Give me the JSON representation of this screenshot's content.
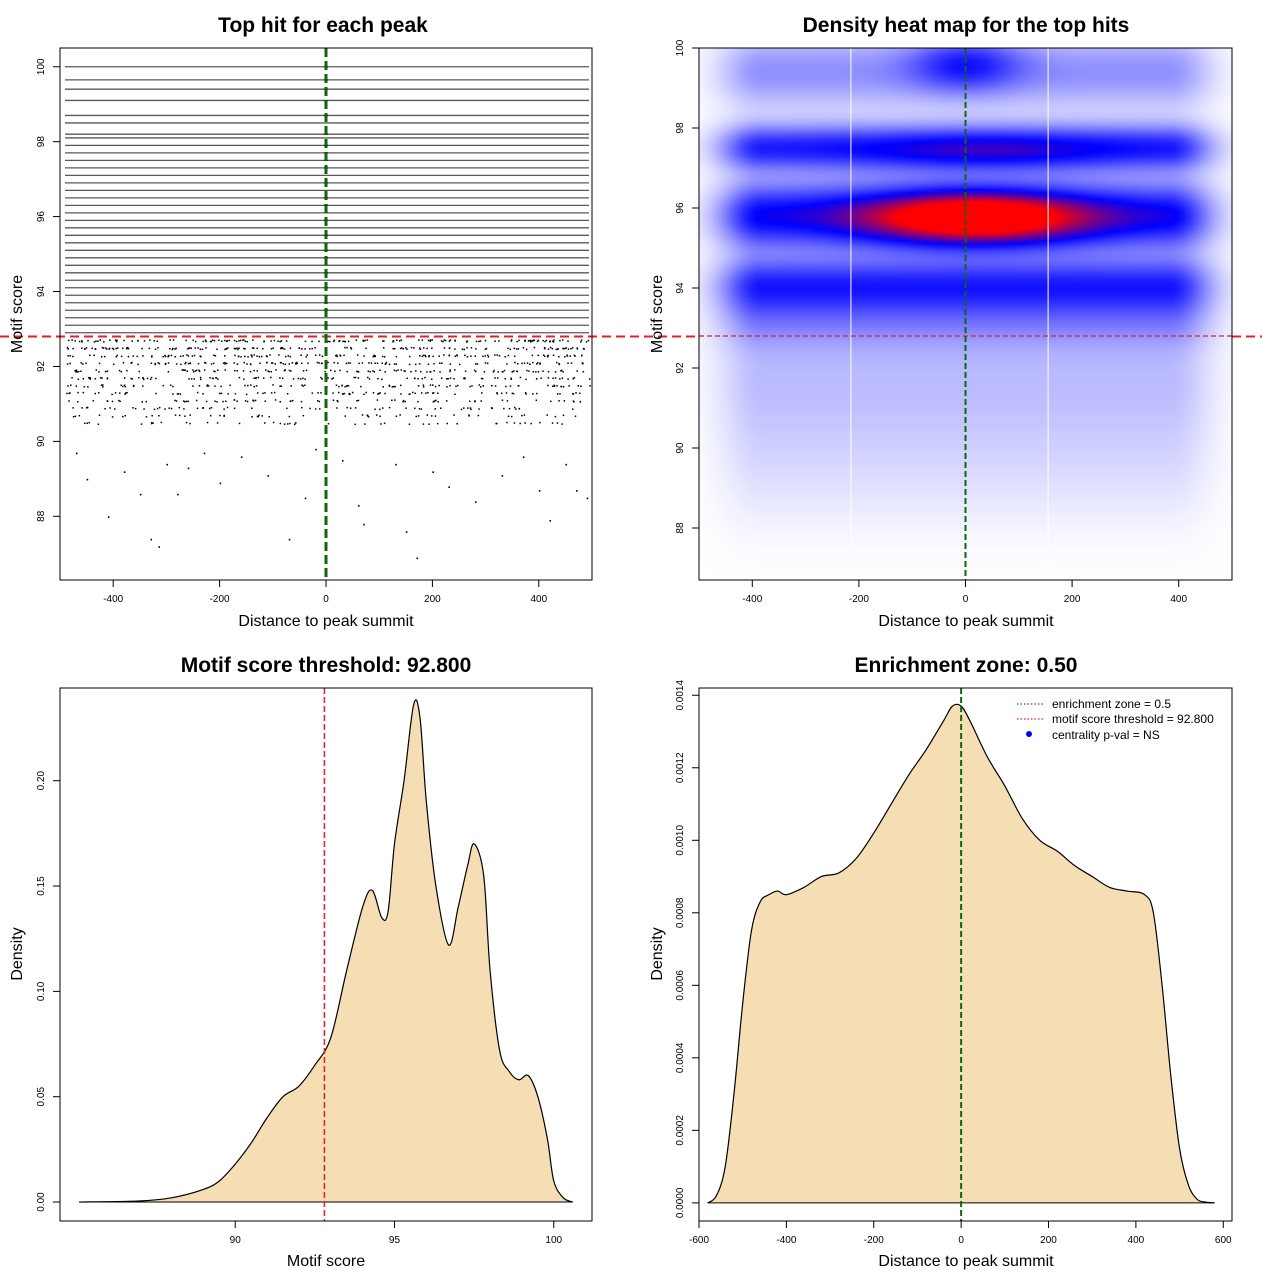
{
  "chart_data": [
    {
      "type": "scatter",
      "title": "Top hit for each peak",
      "xlabel": "Distance to peak summit",
      "ylabel": "Motif score",
      "xlim": [
        -500,
        500
      ],
      "ylim": [
        86.3,
        100.5
      ],
      "xticks": [
        -400,
        -200,
        0,
        200,
        400
      ],
      "yticks": [
        88,
        90,
        92,
        94,
        96,
        98,
        100
      ],
      "vline": 0,
      "hline": 92.8,
      "dense_levels": [
        100.0,
        99.65,
        99.4,
        99.1,
        98.7,
        98.5,
        98.2,
        98.1,
        97.9,
        97.7,
        97.5,
        97.3,
        97.1,
        96.9,
        96.7,
        96.5,
        96.3,
        96.1,
        95.9,
        95.7,
        95.5,
        95.3,
        95.1,
        94.9,
        94.7,
        94.5,
        94.3,
        94.1,
        93.9,
        93.7,
        93.5,
        93.3,
        93.1,
        92.9
      ],
      "sparse_points": [
        [
          -470,
          89.7
        ],
        [
          -450,
          89.0
        ],
        [
          -410,
          88.0
        ],
        [
          -380,
          89.2
        ],
        [
          -350,
          88.6
        ],
        [
          -330,
          87.4
        ],
        [
          -315,
          87.2
        ],
        [
          -300,
          89.4
        ],
        [
          -280,
          88.6
        ],
        [
          -260,
          89.3
        ],
        [
          -230,
          89.7
        ],
        [
          -200,
          88.9
        ],
        [
          -160,
          89.6
        ],
        [
          -110,
          89.1
        ],
        [
          -70,
          87.4
        ],
        [
          -40,
          88.5
        ],
        [
          -20,
          89.8
        ],
        [
          30,
          89.5
        ],
        [
          60,
          88.3
        ],
        [
          70,
          87.8
        ],
        [
          130,
          89.4
        ],
        [
          150,
          87.6
        ],
        [
          170,
          86.9
        ],
        [
          200,
          89.2
        ],
        [
          230,
          88.8
        ],
        [
          280,
          88.4
        ],
        [
          330,
          89.1
        ],
        [
          370,
          89.6
        ],
        [
          400,
          88.7
        ],
        [
          420,
          87.9
        ],
        [
          450,
          89.4
        ],
        [
          470,
          88.7
        ],
        [
          490,
          88.5
        ]
      ]
    },
    {
      "type": "heatmap",
      "title": "Density heat map for the top hits",
      "xlabel": "Distance to peak summit",
      "ylabel": "Motif score",
      "xlim": [
        -500,
        500
      ],
      "ylim": [
        86.7,
        100.0
      ],
      "xticks": [
        -400,
        -200,
        0,
        200,
        400
      ],
      "yticks": [
        88,
        90,
        92,
        94,
        96,
        98,
        100
      ],
      "vline": 0,
      "hline": 92.8,
      "white_vlines": [
        -215,
        155
      ],
      "bands": [
        {
          "y": 95.8,
          "sy": 0.55,
          "amp": 1.0
        },
        {
          "y": 97.5,
          "sy": 0.38,
          "amp": 0.85
        },
        {
          "y": 94.1,
          "sy": 0.45,
          "amp": 0.75
        },
        {
          "y": 93.3,
          "sy": 0.55,
          "amp": 0.35
        },
        {
          "y": 99.4,
          "sy": 0.6,
          "amp": 0.35
        },
        {
          "y": 91.7,
          "sy": 1.1,
          "amp": 0.18
        },
        {
          "y": 89.6,
          "sy": 1.0,
          "amp": 0.07
        }
      ],
      "hotspots": [
        {
          "x": 20,
          "y": 95.75,
          "sx": 140,
          "sy": 0.45,
          "amp": 1.6
        },
        {
          "x": 40,
          "y": 97.4,
          "sx": 160,
          "sy": 0.35,
          "amp": 0.35
        },
        {
          "x": 0,
          "y": 99.6,
          "sx": 70,
          "sy": 0.45,
          "amp": 0.6
        }
      ]
    },
    {
      "type": "area",
      "title": "Motif score threshold: 92.800",
      "xlabel": "Motif score",
      "ylabel": "Density",
      "xlim": [
        84.5,
        101.2
      ],
      "ylim": [
        -0.009,
        0.244
      ],
      "xticks": [
        90,
        95,
        100
      ],
      "yticks": [
        0.0,
        0.05,
        0.1,
        0.15,
        0.2
      ],
      "ytick_labels": [
        "0.00",
        "0.05",
        "0.10",
        "0.15",
        "0.20"
      ],
      "threshold": 92.8,
      "x": [
        85.1,
        87.0,
        88.0,
        89.0,
        89.5,
        90.0,
        90.5,
        91.0,
        91.5,
        92.0,
        92.5,
        93.0,
        93.5,
        94.0,
        94.3,
        94.6,
        94.8,
        95.0,
        95.3,
        95.6,
        95.8,
        96.0,
        96.3,
        96.7,
        97.0,
        97.3,
        97.5,
        97.8,
        98.0,
        98.3,
        98.6,
        98.9,
        99.2,
        99.5,
        99.8,
        100.0,
        100.3,
        100.6
      ],
      "y": [
        0.0,
        0.0005,
        0.002,
        0.006,
        0.01,
        0.018,
        0.028,
        0.04,
        0.05,
        0.055,
        0.065,
        0.078,
        0.11,
        0.14,
        0.148,
        0.135,
        0.138,
        0.17,
        0.2,
        0.236,
        0.23,
        0.19,
        0.15,
        0.122,
        0.14,
        0.16,
        0.17,
        0.155,
        0.11,
        0.072,
        0.062,
        0.058,
        0.06,
        0.05,
        0.03,
        0.01,
        0.002,
        0.0
      ]
    },
    {
      "type": "area",
      "title": "Enrichment zone: 0.50",
      "xlabel": "Distance to peak summit",
      "ylabel": "Density",
      "xlim": [
        -600,
        620
      ],
      "ylim": [
        -5e-05,
        0.00142
      ],
      "xticks": [
        -600,
        -400,
        -200,
        0,
        200,
        400,
        600
      ],
      "yticks": [
        0.0,
        0.0002,
        0.0004,
        0.0006,
        0.0008,
        0.001,
        0.0012,
        0.0014
      ],
      "ytick_labels": [
        "0.0000",
        "0.0002",
        "0.0004",
        "0.0006",
        "0.0008",
        "0.0010",
        "0.0012",
        "0.0014"
      ],
      "vline": 0,
      "x": [
        -580,
        -560,
        -540,
        -520,
        -500,
        -480,
        -460,
        -440,
        -420,
        -400,
        -360,
        -320,
        -280,
        -240,
        -200,
        -160,
        -120,
        -80,
        -40,
        -20,
        0,
        20,
        60,
        100,
        140,
        180,
        220,
        260,
        300,
        340,
        380,
        420,
        440,
        460,
        480,
        500,
        520,
        540,
        560,
        580
      ],
      "y": [
        0.0,
        2e-05,
        0.0001,
        0.0003,
        0.00055,
        0.00075,
        0.00083,
        0.00085,
        0.00086,
        0.00085,
        0.00087,
        0.0009,
        0.00091,
        0.00095,
        0.00102,
        0.0011,
        0.00118,
        0.00125,
        0.00133,
        0.00137,
        0.00137,
        0.00133,
        0.00123,
        0.00115,
        0.00106,
        0.001,
        0.00097,
        0.00093,
        0.0009,
        0.00087,
        0.00086,
        0.00085,
        0.0008,
        0.0006,
        0.00035,
        0.00015,
        5e-05,
        1e-05,
        2e-06,
        0.0
      ]
    }
  ],
  "legend": {
    "items": [
      {
        "label": "enrichment zone = 0.5",
        "color": "#0a8a0a",
        "style": "dotted"
      },
      {
        "label": "motif score threshold = 92.800",
        "color": "#e0202a",
        "style": "dotted"
      },
      {
        "label": "centrality p-val = NS",
        "color": "#0000ff",
        "style": "point"
      }
    ]
  },
  "colors": {
    "fill": "#f5deb3",
    "threshold_red": "#e0202a",
    "center_green": "#0a6a0a",
    "heat_blue": "#0000ff",
    "heat_red": "#ff0000"
  }
}
